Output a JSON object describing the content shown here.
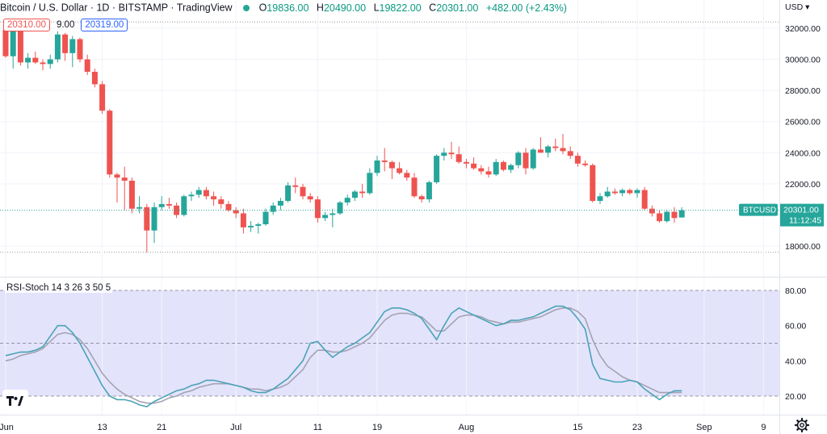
{
  "header": {
    "symbol_title": "Bitcoin / U.S. Dollar · 1D · BITSTAMP · TradingView",
    "status_color": "#26a69a",
    "ohlc": [
      {
        "label": "O",
        "value": "19836.00"
      },
      {
        "label": "H",
        "value": "20490.00"
      },
      {
        "label": "L",
        "value": "19822.00"
      },
      {
        "label": "C",
        "value": "20301.00"
      }
    ],
    "change": "+482.00 (+2.43%)",
    "bid": "20310.00",
    "spread": "9.00",
    "ask": "20319.00"
  },
  "price_axis": {
    "currency": "USD",
    "ticks": [
      "32000.00",
      "30000.00",
      "28000.00",
      "26000.00",
      "24000.00",
      "22000.00",
      "18000.00"
    ],
    "ticker_label": "BTCUSD",
    "last_price": "20301.00",
    "countdown": "11:12:45"
  },
  "indicator": {
    "title": "RSI-Stoch 14 3 26 3 50 5",
    "ticks": [
      "80.00",
      "60.00",
      "40.00",
      "20.00"
    ]
  },
  "time_axis": {
    "labels": [
      "Jun",
      "13",
      "21",
      "Jul",
      "11",
      "19",
      "Aug",
      "15",
      "23",
      "Sep",
      "9"
    ]
  },
  "colors": {
    "up": "#26a69a",
    "down": "#ef5350",
    "k_line": "#4aa3b5",
    "d_line": "#a3a3b3",
    "band_fill": "#e3e3fc"
  },
  "chart_data": [
    {
      "type": "candlestick",
      "title": "Bitcoin / U.S. Dollar · 1D · BITSTAMP",
      "ylim": [
        17400,
        33000
      ],
      "candles": [
        [
          31900,
          31950,
          30100,
          30200
        ],
        [
          30200,
          32500,
          29400,
          31800
        ],
        [
          31800,
          31900,
          29600,
          29800
        ],
        [
          29800,
          30400,
          29400,
          30100
        ],
        [
          30100,
          30500,
          29700,
          29800
        ],
        [
          29800,
          30000,
          29300,
          29700
        ],
        [
          29700,
          30300,
          29400,
          30000
        ],
        [
          30000,
          31800,
          29800,
          31600
        ],
        [
          31600,
          31700,
          29900,
          30400
        ],
        [
          30400,
          31500,
          29500,
          31300
        ],
        [
          31300,
          31400,
          29800,
          30000
        ],
        [
          30000,
          30300,
          29000,
          29200
        ],
        [
          29200,
          29400,
          28200,
          28400
        ],
        [
          28400,
          28600,
          26500,
          26700
        ],
        [
          26700,
          26800,
          22400,
          22600
        ],
        [
          22600,
          22700,
          20800,
          22400
        ],
        [
          22400,
          23100,
          20300,
          22200
        ],
        [
          22200,
          22400,
          20100,
          20400
        ],
        [
          20400,
          21200,
          20100,
          20500
        ],
        [
          20500,
          20700,
          17600,
          19000
        ],
        [
          19000,
          20800,
          18200,
          20500
        ],
        [
          20500,
          21200,
          20300,
          20700
        ],
        [
          20700,
          21100,
          20400,
          20600
        ],
        [
          20600,
          20800,
          19800,
          20000
        ],
        [
          20000,
          21300,
          19900,
          21200
        ],
        [
          21200,
          21500,
          20900,
          21300
        ],
        [
          21300,
          21800,
          21100,
          21600
        ],
        [
          21600,
          21800,
          21000,
          21200
        ],
        [
          21200,
          21500,
          20600,
          21000
        ],
        [
          21000,
          21200,
          20400,
          20700
        ],
        [
          20700,
          20900,
          20200,
          20300
        ],
        [
          20300,
          20500,
          19800,
          20100
        ],
        [
          20100,
          20400,
          18800,
          19200
        ],
        [
          19200,
          19600,
          18900,
          19300
        ],
        [
          19300,
          19500,
          18800,
          19400
        ],
        [
          19400,
          20400,
          19300,
          20200
        ],
        [
          20200,
          20800,
          20000,
          20600
        ],
        [
          20600,
          21100,
          20300,
          20900
        ],
        [
          20900,
          22100,
          20800,
          21900
        ],
        [
          21900,
          22400,
          21400,
          21800
        ],
        [
          21800,
          22000,
          21000,
          21200
        ],
        [
          21200,
          21400,
          20800,
          21000
        ],
        [
          21000,
          21200,
          19500,
          19800
        ],
        [
          19800,
          20200,
          19600,
          20000
        ],
        [
          20000,
          20400,
          19200,
          20100
        ],
        [
          20100,
          20900,
          20000,
          20800
        ],
        [
          20800,
          21300,
          20600,
          21100
        ],
        [
          21100,
          21600,
          20900,
          21500
        ],
        [
          21500,
          22000,
          21100,
          21400
        ],
        [
          21400,
          23000,
          21300,
          22700
        ],
        [
          22700,
          23800,
          22500,
          23500
        ],
        [
          23500,
          24300,
          22800,
          23400
        ],
        [
          23400,
          23500,
          22300,
          23000
        ],
        [
          23000,
          23400,
          22600,
          22700
        ],
        [
          22700,
          22900,
          22200,
          22400
        ],
        [
          22400,
          22700,
          21100,
          21200
        ],
        [
          21200,
          21300,
          20800,
          21000
        ],
        [
          21000,
          22200,
          20800,
          22100
        ],
        [
          22100,
          23900,
          22000,
          23800
        ],
        [
          23800,
          24300,
          23500,
          24000
        ],
        [
          24000,
          24700,
          23600,
          23900
        ],
        [
          23900,
          24400,
          23300,
          23400
        ],
        [
          23400,
          23600,
          23000,
          23300
        ],
        [
          23300,
          23700,
          22900,
          23000
        ],
        [
          23000,
          23200,
          22600,
          22800
        ],
        [
          22800,
          23100,
          22400,
          22600
        ],
        [
          22600,
          23600,
          22500,
          23400
        ],
        [
          23400,
          23500,
          22800,
          22900
        ],
        [
          22900,
          23300,
          22700,
          23200
        ],
        [
          23200,
          24100,
          23000,
          24000
        ],
        [
          24000,
          24300,
          22600,
          23000
        ],
        [
          23000,
          24300,
          22900,
          24200
        ],
        [
          24200,
          25000,
          24000,
          24000
        ],
        [
          24000,
          24500,
          23700,
          24400
        ],
        [
          24400,
          24900,
          24100,
          24300
        ],
        [
          24300,
          25200,
          23900,
          24100
        ],
        [
          24100,
          24400,
          23600,
          23800
        ],
        [
          23800,
          24000,
          23100,
          23300
        ],
        [
          23300,
          23500,
          23100,
          23200
        ],
        [
          23200,
          23300,
          20800,
          20900
        ],
        [
          20900,
          21400,
          20700,
          21200
        ],
        [
          21200,
          21800,
          21100,
          21500
        ],
        [
          21500,
          21700,
          21300,
          21400
        ],
        [
          21400,
          21700,
          21200,
          21600
        ],
        [
          21600,
          21700,
          21300,
          21400
        ],
        [
          21400,
          21700,
          21100,
          21600
        ],
        [
          21600,
          21800,
          20300,
          20400
        ],
        [
          20400,
          20600,
          19900,
          20100
        ],
        [
          20100,
          20300,
          19500,
          19600
        ],
        [
          19600,
          20300,
          19500,
          20200
        ],
        [
          20200,
          20500,
          19500,
          19800
        ],
        [
          19836,
          20490,
          19822,
          20301
        ]
      ]
    },
    {
      "type": "line",
      "title": "RSI-Stoch 14 3 26 3 50 5",
      "ylim": [
        0,
        85
      ],
      "series": [
        {
          "name": "",
          "values": [
            43,
            44,
            45,
            45,
            46,
            48,
            54,
            60,
            60,
            56,
            50,
            42,
            34,
            26,
            20,
            18,
            18,
            17,
            15,
            14,
            17,
            19,
            21,
            23,
            24,
            26,
            27,
            29,
            29,
            28,
            27,
            26,
            25,
            23,
            22,
            22,
            24,
            27,
            30,
            35,
            40,
            50,
            51,
            46,
            42,
            45,
            48,
            50,
            53,
            56,
            62,
            68,
            70,
            70,
            69,
            67,
            64,
            58,
            52,
            60,
            67,
            70,
            68,
            66,
            64,
            62,
            60,
            61,
            63,
            63,
            64,
            65,
            67,
            69,
            71,
            71,
            69,
            64,
            58,
            38,
            30,
            29,
            28,
            28,
            29,
            28,
            24,
            21,
            18,
            21,
            23,
            23
          ]
        },
        {
          "name": "",
          "values": [
            40,
            41,
            43,
            44,
            45,
            47,
            51,
            55,
            56,
            55,
            52,
            47,
            40,
            33,
            28,
            24,
            21,
            19,
            17,
            16,
            16,
            17,
            19,
            20,
            22,
            23,
            25,
            26,
            27,
            27,
            27,
            26,
            25,
            24,
            24,
            23,
            24,
            25,
            27,
            31,
            35,
            42,
            46,
            46,
            45,
            45,
            46,
            48,
            50,
            53,
            58,
            63,
            66,
            67,
            67,
            66,
            65,
            61,
            57,
            57,
            61,
            65,
            66,
            66,
            65,
            63,
            62,
            61,
            62,
            62,
            63,
            64,
            65,
            67,
            69,
            70,
            70,
            68,
            64,
            52,
            43,
            37,
            34,
            31,
            29,
            28,
            26,
            24,
            22,
            22,
            22,
            22
          ]
        }
      ],
      "levels": [
        80,
        50,
        20
      ]
    }
  ]
}
